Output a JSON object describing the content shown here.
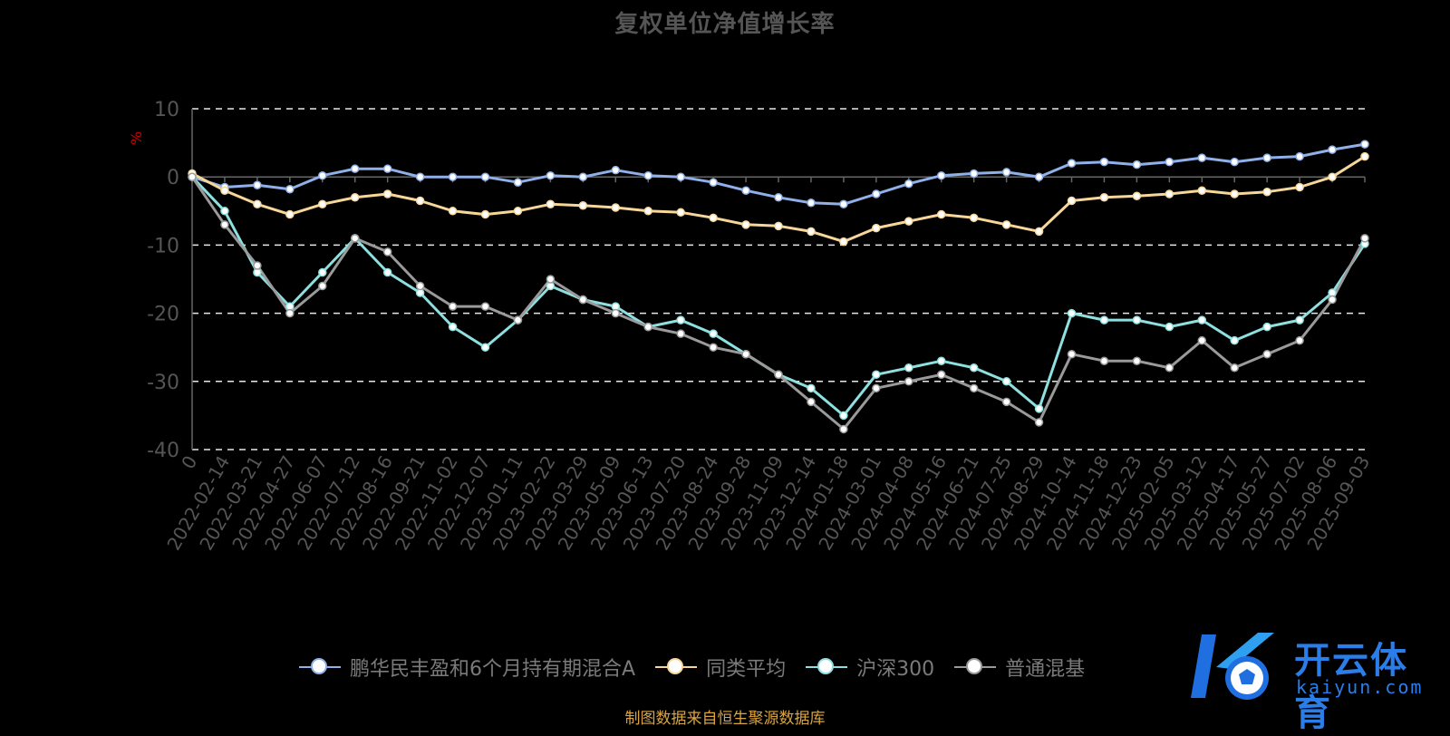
{
  "chart_data": {
    "type": "line",
    "title": "复权单位净值增长率",
    "ylabel": "%",
    "ylim": [
      -40,
      10
    ],
    "yticks": [
      10,
      0,
      -10,
      -20,
      -30,
      -40
    ],
    "grid": true,
    "legend_position": "bottom",
    "categories": [
      "0",
      "2022-02-14",
      "2022-03-21",
      "2022-04-27",
      "2022-06-07",
      "2022-07-12",
      "2022-08-16",
      "2022-09-21",
      "2022-11-02",
      "2022-12-07",
      "2023-01-11",
      "2023-02-22",
      "2023-03-29",
      "2023-05-09",
      "2023-06-13",
      "2023-07-20",
      "2023-08-24",
      "2023-09-28",
      "2023-11-09",
      "2023-12-14",
      "2024-01-18",
      "2024-03-01",
      "2024-04-08",
      "2024-05-16",
      "2024-06-21",
      "2024-07-25",
      "2024-08-29",
      "2024-10-14",
      "2024-11-18",
      "2024-12-23",
      "2025-02-05",
      "2025-03-12",
      "2025-04-17",
      "2025-05-27",
      "2025-07-02",
      "2025-08-06",
      "2025-09-03"
    ],
    "series": [
      {
        "name": "鹏华民丰盈和6个月持有期混合A",
        "color": "#8fb0e8",
        "values": [
          0,
          -1.5,
          -1.2,
          -1.8,
          0.2,
          1.2,
          1.2,
          0,
          0,
          0,
          -0.8,
          0.2,
          0,
          1,
          0.2,
          0,
          -0.8,
          -2,
          -3,
          -3.8,
          -4,
          -2.5,
          -1,
          0.2,
          0.5,
          0.7,
          0,
          2,
          2.2,
          1.8,
          2.2,
          2.8,
          2.2,
          2.8,
          3,
          4,
          4.8
        ]
      },
      {
        "name": "同类平均",
        "color": "#f7d69a",
        "values": [
          0.5,
          -2,
          -4,
          -5.5,
          -4,
          -3,
          -2.5,
          -3.5,
          -5,
          -5.5,
          -5,
          -4,
          -4.2,
          -4.5,
          -5,
          -5.2,
          -6,
          -7,
          -7.2,
          -8,
          -9.5,
          -7.5,
          -6.5,
          -5.5,
          -6,
          -7,
          -8,
          -3.5,
          -3,
          -2.8,
          -2.5,
          -2,
          -2.5,
          -2.2,
          -1.5,
          0,
          3
        ]
      },
      {
        "name": "沪深300",
        "color": "#8ee0e0",
        "values": [
          0,
          -5,
          -14,
          -19,
          -14,
          -9,
          -14,
          -17,
          -22,
          -25,
          -21,
          -16,
          -18,
          -19,
          -22,
          -21,
          -23,
          -26,
          -29,
          -31,
          -35,
          -29,
          -28,
          -27,
          -28,
          -30,
          -34,
          -20,
          -21,
          -21,
          -22,
          -21,
          -24,
          -22,
          -21,
          -17,
          -9.8
        ]
      },
      {
        "name": "普通混基",
        "color": "#9a9a9a",
        "values": [
          0,
          -7,
          -13,
          -20,
          -16,
          -9,
          -11,
          -16,
          -19,
          -19,
          -21,
          -15,
          -18,
          -20,
          -22,
          -23,
          -25,
          -26,
          -29,
          -33,
          -37,
          -31,
          -30,
          -29,
          -31,
          -33,
          -36,
          -26,
          -27,
          -27,
          -28,
          -24,
          -28,
          -26,
          -24,
          -18,
          -9
        ]
      }
    ]
  },
  "legend_items": [
    {
      "label": "鹏华民丰盈和6个月持有期混合A",
      "color": "#8fb0e8"
    },
    {
      "label": "同类平均",
      "color": "#f7d69a"
    },
    {
      "label": "沪深300",
      "color": "#8ee0e0"
    },
    {
      "label": "普通混基",
      "color": "#9a9a9a"
    }
  ],
  "source_note": "制图数据来自恒生聚源数据库",
  "logo": {
    "icon": "kaiyun-k-ball-logo",
    "brand": "开云体育",
    "domain": "kaiyun.com"
  },
  "colors": {
    "background": "#000000",
    "axis": "#666666",
    "grid": "#ffffff",
    "ylabel": "#cc0000"
  }
}
